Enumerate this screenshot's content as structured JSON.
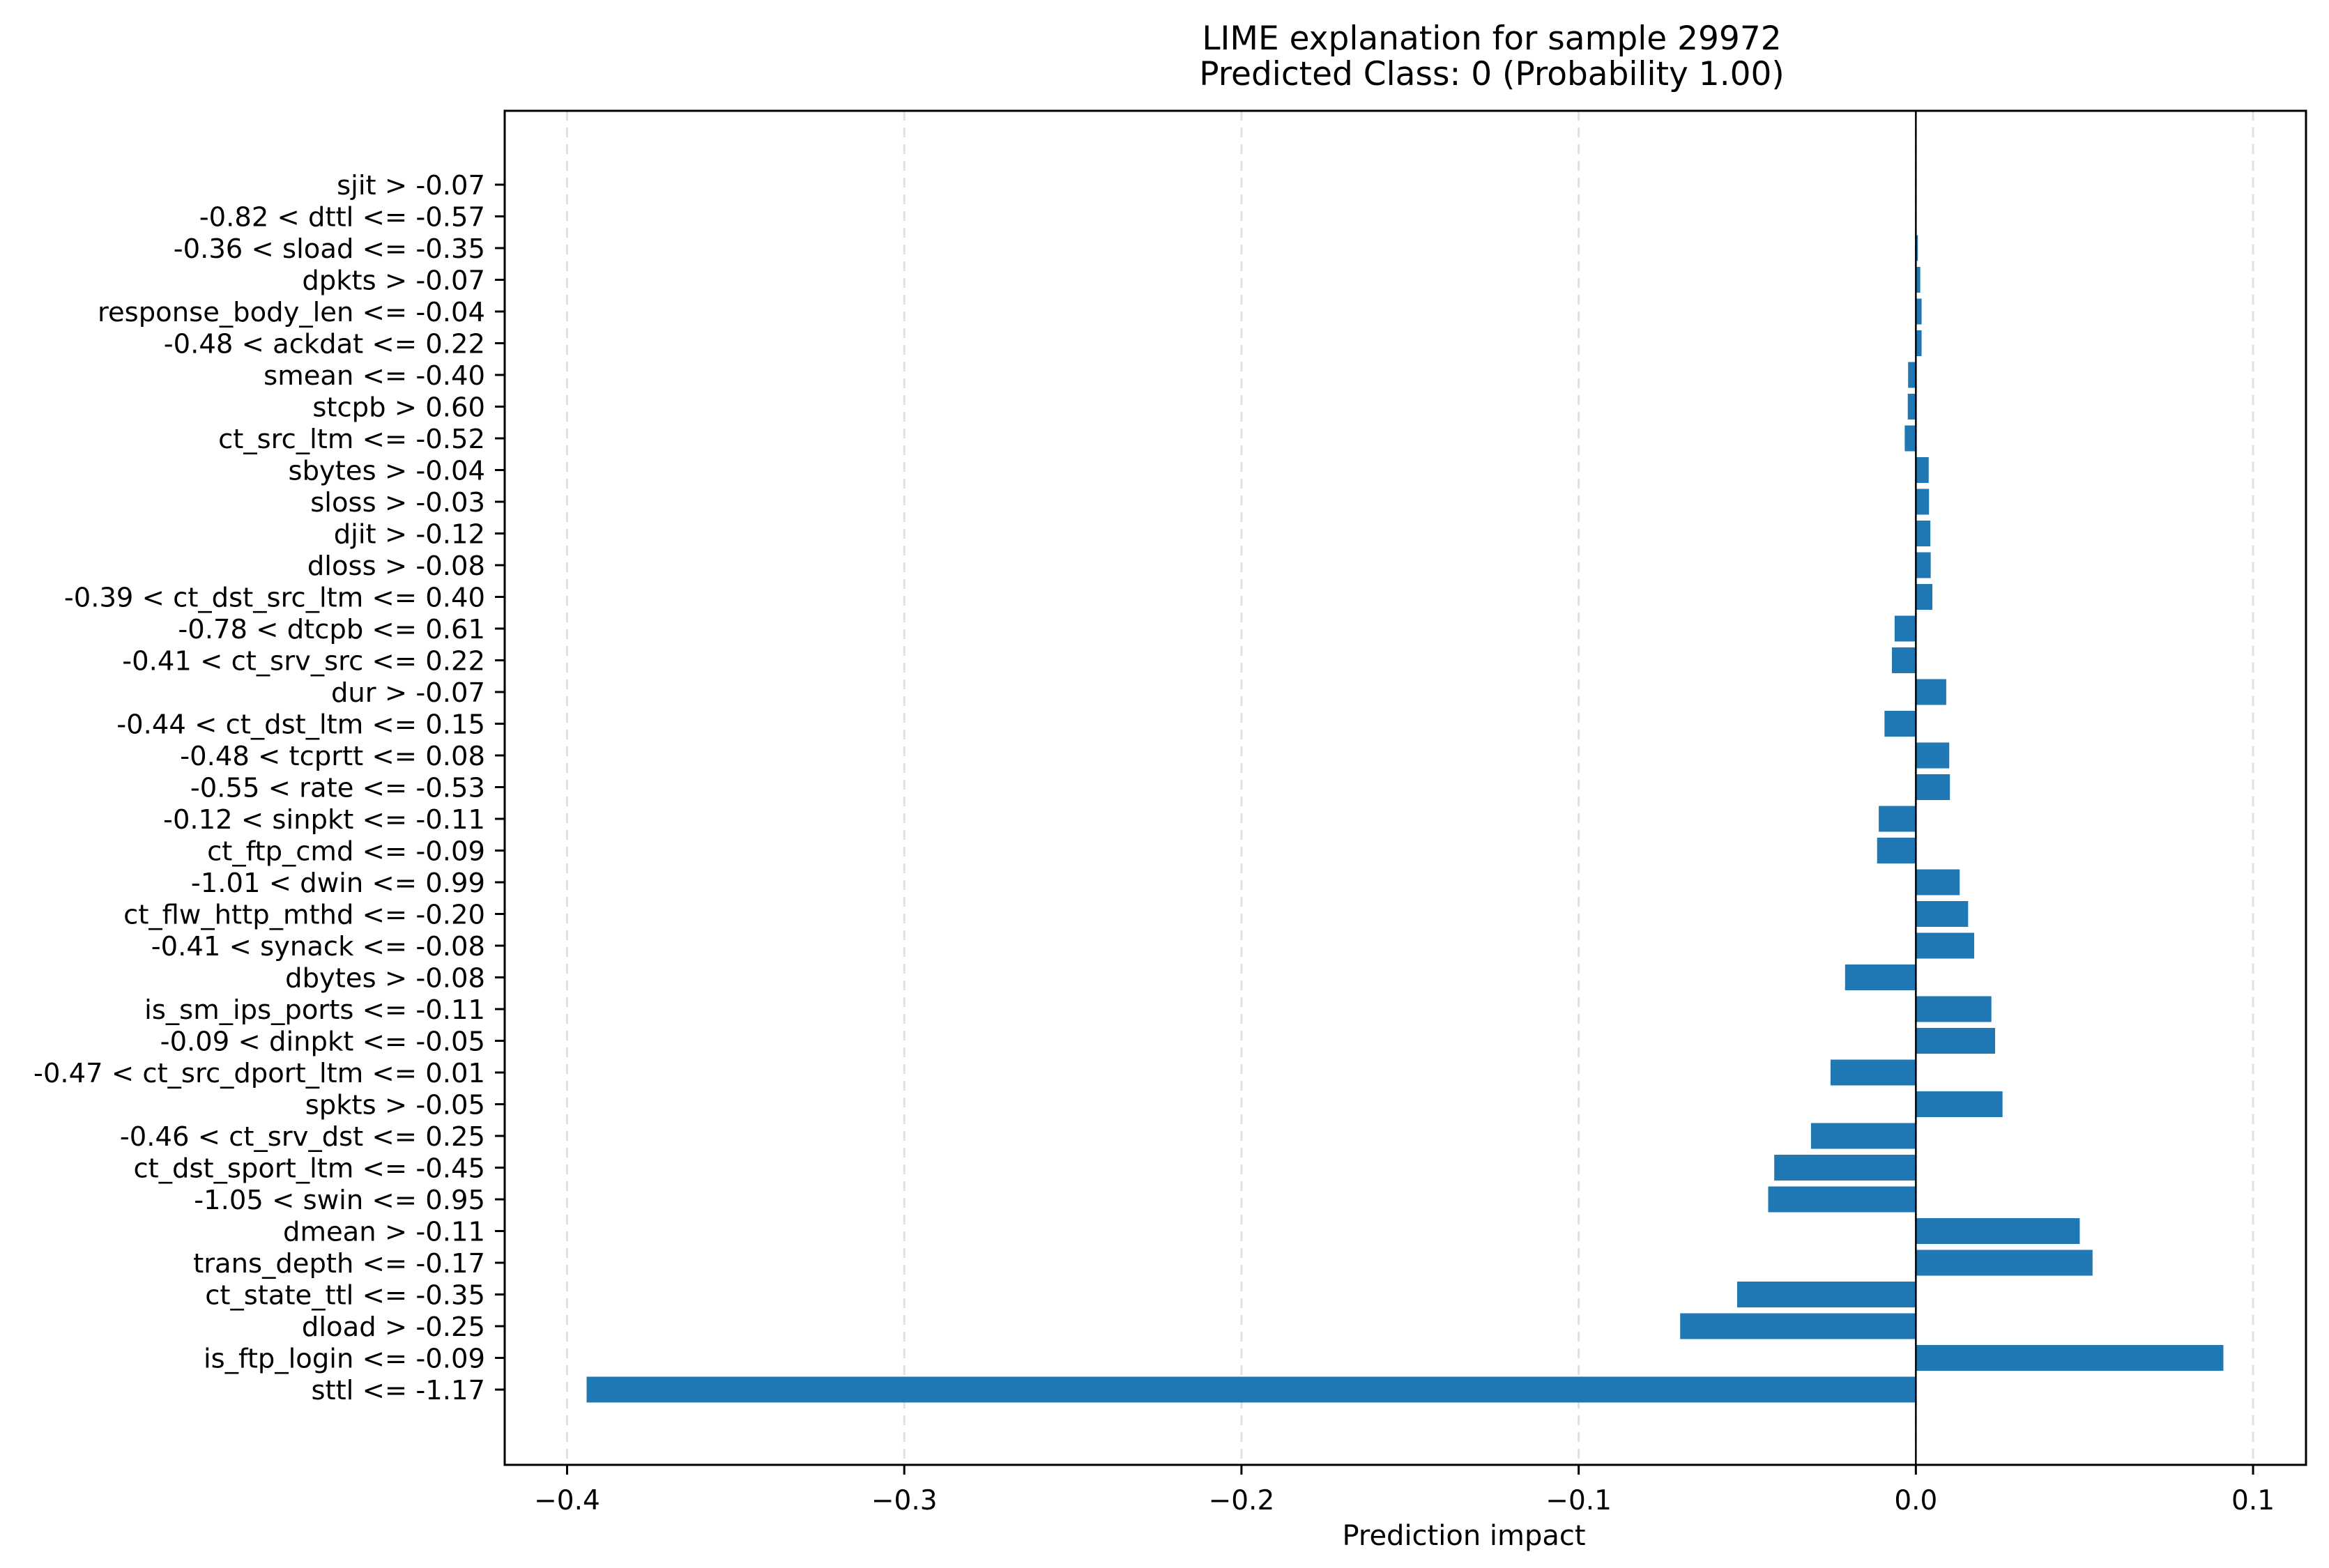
{
  "chart": {
    "title_line1": "LIME explanation for sample 29972",
    "title_line2": "Predicted Class: 0 (Probability 1.00)",
    "xlabel": "Prediction impact",
    "bar_color": "#1f77b4",
    "grid_color": "#e0e0e0",
    "zero_line_color": "#000000"
  },
  "chart_data": {
    "type": "bar",
    "orientation": "horizontal",
    "title": "LIME explanation for sample 29972\nPredicted Class: 0 (Probability 1.00)",
    "xlabel": "Prediction impact",
    "ylabel": "",
    "xlim": [
      -0.4185,
      0.1157
    ],
    "xticks": [
      -0.4,
      -0.3,
      -0.2,
      -0.1,
      0.0,
      0.1
    ],
    "xtick_labels": [
      "−0.4",
      "−0.3",
      "−0.2",
      "−0.1",
      "0.0",
      "0.1"
    ],
    "grid": {
      "x": true,
      "y": false,
      "style": "dashed"
    },
    "zero_line": true,
    "legend": null,
    "categories": [
      "sjit > -0.07",
      "-0.82 < dttl <= -0.57",
      "-0.36 < sload <= -0.35",
      "dpkts > -0.07",
      "response_body_len <= -0.04",
      "-0.48 < ackdat <= 0.22",
      "smean <= -0.40",
      "stcpb > 0.60",
      "ct_src_ltm <= -0.52",
      "sbytes > -0.04",
      "sloss > -0.03",
      "djit > -0.12",
      "dloss > -0.08",
      "-0.39 < ct_dst_src_ltm <= 0.40",
      "-0.78 < dtcpb <= 0.61",
      "-0.41 < ct_srv_src <= 0.22",
      "dur > -0.07",
      "-0.44 < ct_dst_ltm <= 0.15",
      "-0.48 < tcprtt <= 0.08",
      "-0.55 < rate <= -0.53",
      "-0.12 < sinpkt <= -0.11",
      "ct_ftp_cmd <= -0.09",
      "-1.01 < dwin <= 0.99",
      "ct_flw_http_mthd <= -0.20",
      "-0.41 < synack <= -0.08",
      "dbytes > -0.08",
      "is_sm_ips_ports <= -0.11",
      "-0.09 < dinpkt <= -0.05",
      "-0.47 < ct_src_dport_ltm <= 0.01",
      "spkts > -0.05",
      "-0.46 < ct_srv_dst <= 0.25",
      "ct_dst_sport_ltm <= -0.45",
      "-1.05 < swin <= 0.95",
      "dmean > -0.11",
      "trans_depth <= -0.17",
      "ct_state_ttl <= -0.35",
      "dload > -0.25",
      "is_ftp_login <= -0.09",
      "sttl <= -1.17"
    ],
    "values": [
      0.0,
      0.0002,
      0.0006,
      0.0013,
      0.0017,
      0.0017,
      -0.0023,
      -0.0024,
      -0.0033,
      0.0038,
      0.0039,
      0.0043,
      0.0044,
      0.0049,
      -0.0063,
      -0.0071,
      0.009,
      -0.0093,
      0.0099,
      0.0101,
      -0.011,
      -0.0115,
      0.013,
      0.0155,
      0.0173,
      -0.021,
      0.0224,
      0.0235,
      -0.0253,
      0.0257,
      -0.0311,
      -0.042,
      -0.0438,
      0.0486,
      0.0524,
      -0.053,
      -0.0699,
      0.0912,
      -0.3942
    ]
  }
}
